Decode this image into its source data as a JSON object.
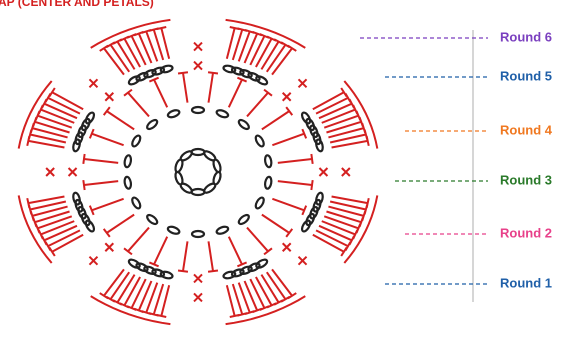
{
  "header": {
    "title": "AP (CENTER AND PETALS)"
  },
  "legend": [
    {
      "label": "Round 6",
      "color": "#7a3fbf"
    },
    {
      "label": "Round 5",
      "color": "#1f5fa8"
    },
    {
      "label": "Round 4",
      "color": "#f07820"
    },
    {
      "label": "Round 3",
      "color": "#2a7a2a"
    },
    {
      "label": "Round 2",
      "color": "#e8408a"
    },
    {
      "label": "Round 1",
      "color": "#1f5fa8"
    }
  ]
}
